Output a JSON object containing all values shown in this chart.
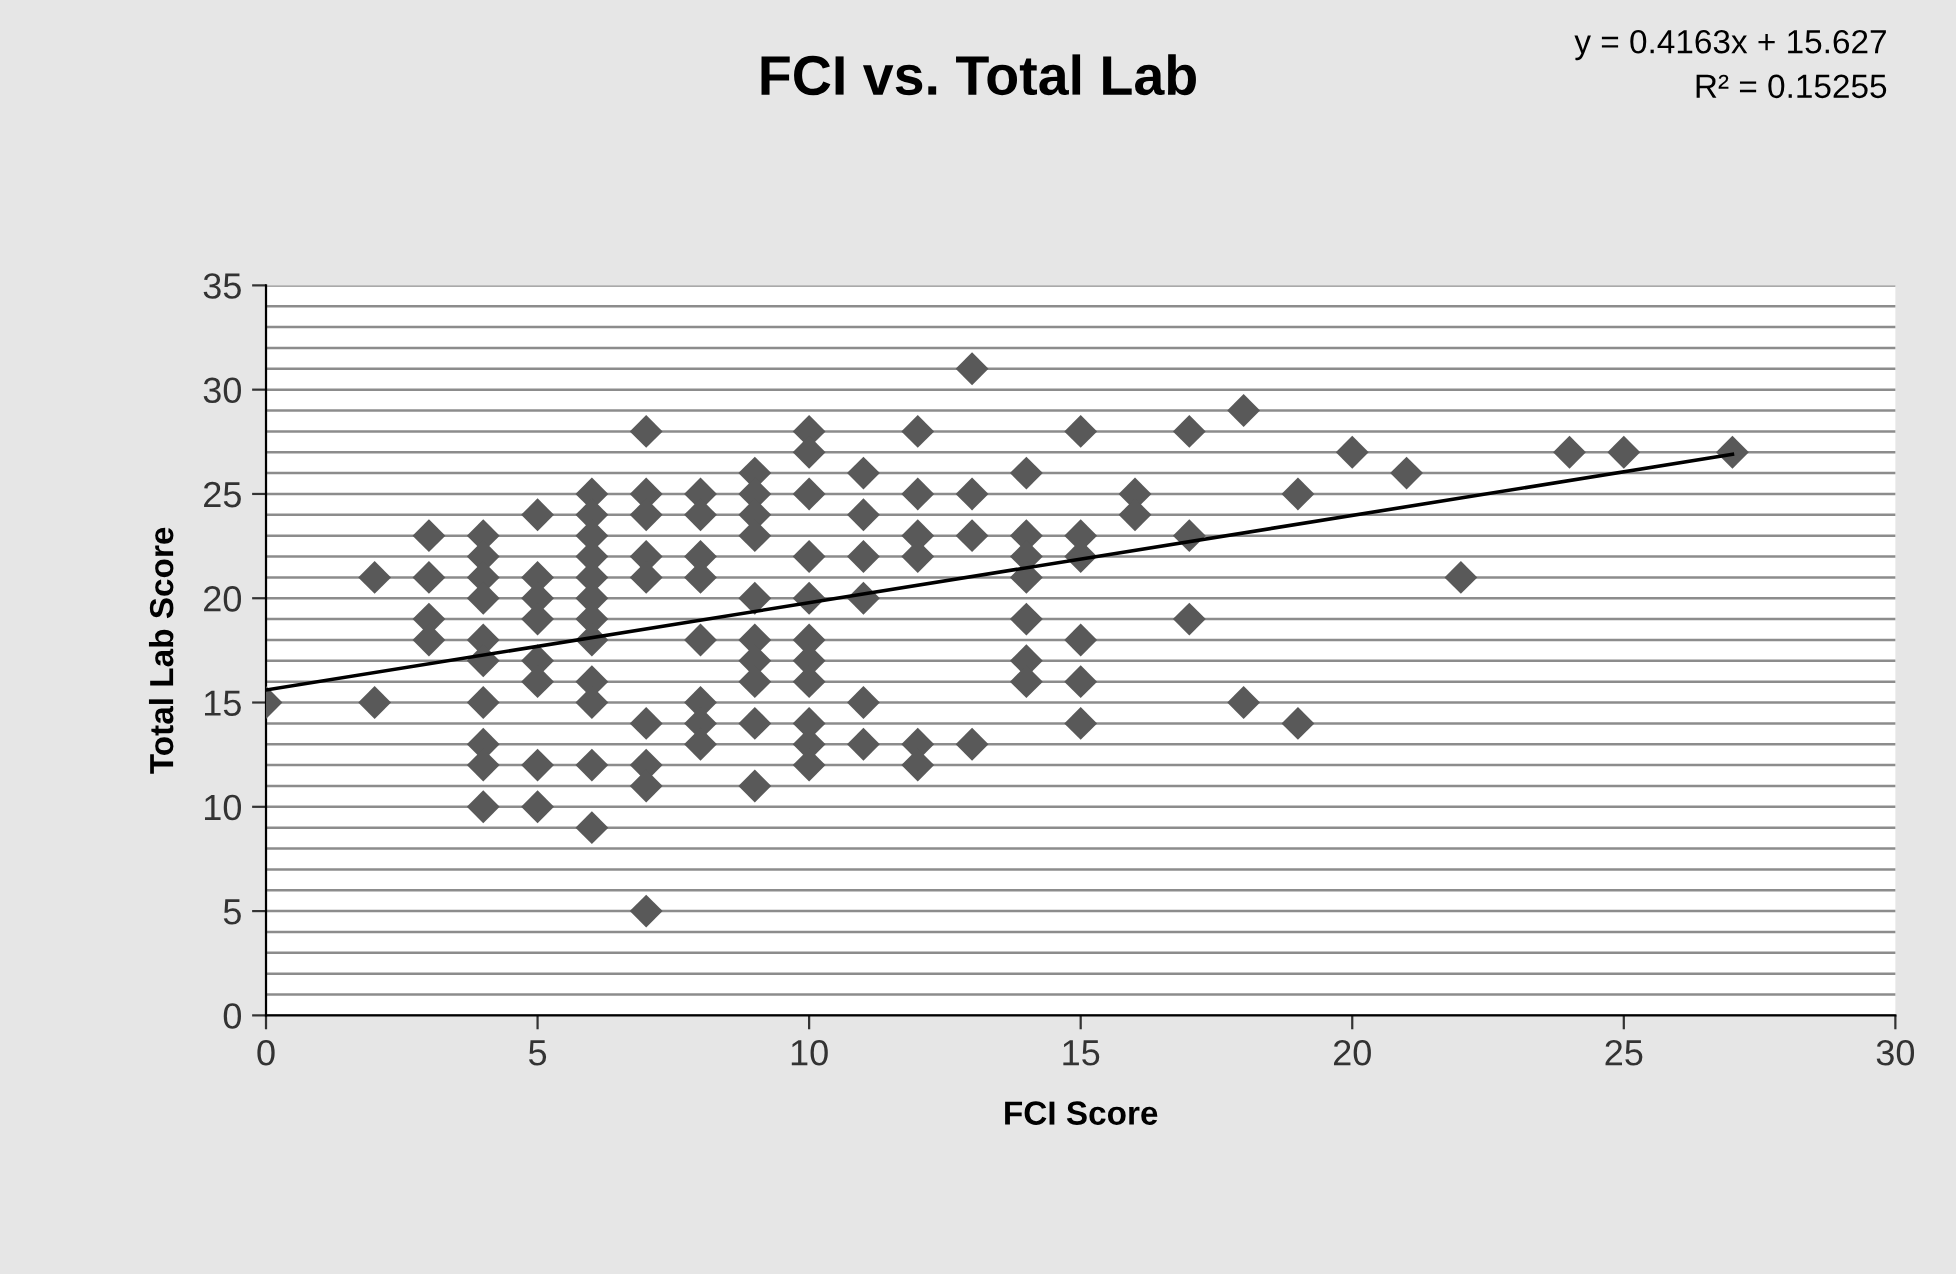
{
  "chart_data": {
    "type": "scatter",
    "title": "FCI vs. Total Lab",
    "xlabel": "FCI Score",
    "ylabel": "Total Lab Score",
    "annotations": [
      "y = 0.4163x + 15.627",
      "R² = 0.15255"
    ],
    "xlim": [
      0,
      30
    ],
    "xticks": [
      0,
      5,
      10,
      15,
      20,
      25,
      30
    ],
    "ylim": [
      0,
      35
    ],
    "yticks": [
      0,
      {
        "value": 1,
        "label": null
      },
      {
        "value": 2,
        "label": null
      },
      {
        "value": 3,
        "label": null
      },
      {
        "value": 4,
        "label": null
      },
      5,
      {
        "value": 6,
        "label": null
      },
      {
        "value": 7,
        "label": null
      },
      {
        "value": 8,
        "label": null
      },
      {
        "value": 9,
        "label": null
      },
      10,
      {
        "value": 11,
        "label": null
      },
      {
        "value": 12,
        "label": null
      },
      {
        "value": 13,
        "label": null
      },
      {
        "value": 14,
        "label": null
      },
      15,
      {
        "value": 16,
        "label": null
      },
      {
        "value": 17,
        "label": null
      },
      {
        "value": 18,
        "label": null
      },
      {
        "value": 19,
        "label": null
      },
      20,
      {
        "value": 21,
        "label": null
      },
      {
        "value": 22,
        "label": null
      },
      {
        "value": 23,
        "label": null
      },
      {
        "value": 24,
        "label": null
      },
      25,
      {
        "value": 26,
        "label": null
      },
      {
        "value": 27,
        "label": null
      },
      {
        "value": 28,
        "label": null
      },
      {
        "value": 29,
        "label": null
      },
      30,
      {
        "value": 31,
        "label": null
      },
      {
        "value": 32,
        "label": null
      },
      {
        "value": 33,
        "label": null
      },
      {
        "value": 34,
        "label": null
      },
      35
    ],
    "grid": "y",
    "marker": "diamond",
    "legend": false,
    "series": [
      {
        "color": "#595959",
        "x": [
          0,
          2,
          2,
          3,
          3,
          3,
          3,
          4,
          4,
          4,
          4,
          4,
          4,
          4,
          4,
          4,
          4,
          5,
          5,
          5,
          5,
          5,
          5,
          5,
          5,
          6,
          6,
          6,
          6,
          6,
          6,
          6,
          6,
          6,
          6,
          6,
          6,
          7,
          7,
          7,
          7,
          7,
          7,
          7,
          7,
          7,
          8,
          8,
          8,
          8,
          8,
          8,
          8,
          8,
          9,
          9,
          9,
          9,
          9,
          9,
          9,
          9,
          9,
          9,
          10,
          10,
          10,
          10,
          10,
          10,
          10,
          10,
          10,
          10,
          10,
          11,
          11,
          11,
          11,
          11,
          11,
          12,
          12,
          12,
          12,
          12,
          12,
          13,
          13,
          13,
          13,
          14,
          14,
          14,
          14,
          14,
          14,
          14,
          15,
          15,
          15,
          15,
          15,
          15,
          16,
          16,
          17,
          17,
          17,
          18,
          18,
          19,
          19,
          20,
          21,
          22,
          24,
          25,
          27
        ],
        "values": [
          15,
          21,
          15,
          23,
          21,
          19,
          18,
          23,
          22,
          21,
          20,
          18,
          17,
          15,
          13,
          12,
          10,
          24,
          21,
          20,
          19,
          17,
          16,
          12,
          10,
          25,
          24,
          23,
          22,
          21,
          20,
          19,
          18,
          16,
          15,
          12,
          9,
          28,
          25,
          24,
          22,
          21,
          14,
          12,
          11,
          5,
          25,
          24,
          22,
          21,
          18,
          15,
          14,
          13,
          26,
          25,
          24,
          23,
          20,
          18,
          17,
          16,
          14,
          11,
          28,
          27,
          25,
          22,
          20,
          18,
          17,
          16,
          14,
          13,
          12,
          26,
          24,
          22,
          20,
          15,
          13,
          28,
          25,
          23,
          22,
          13,
          12,
          31,
          25,
          23,
          13,
          26,
          23,
          22,
          21,
          19,
          17,
          16,
          28,
          23,
          22,
          18,
          16,
          14,
          25,
          24,
          28,
          23,
          19,
          29,
          15,
          25,
          14,
          27,
          26,
          21,
          27,
          27,
          27
        ]
      },
      {
        "type": "line",
        "color": "#000000",
        "marker": "none",
        "x": [
          0,
          27
        ],
        "values": [
          15.6,
          26.9
        ]
      }
    ]
  }
}
